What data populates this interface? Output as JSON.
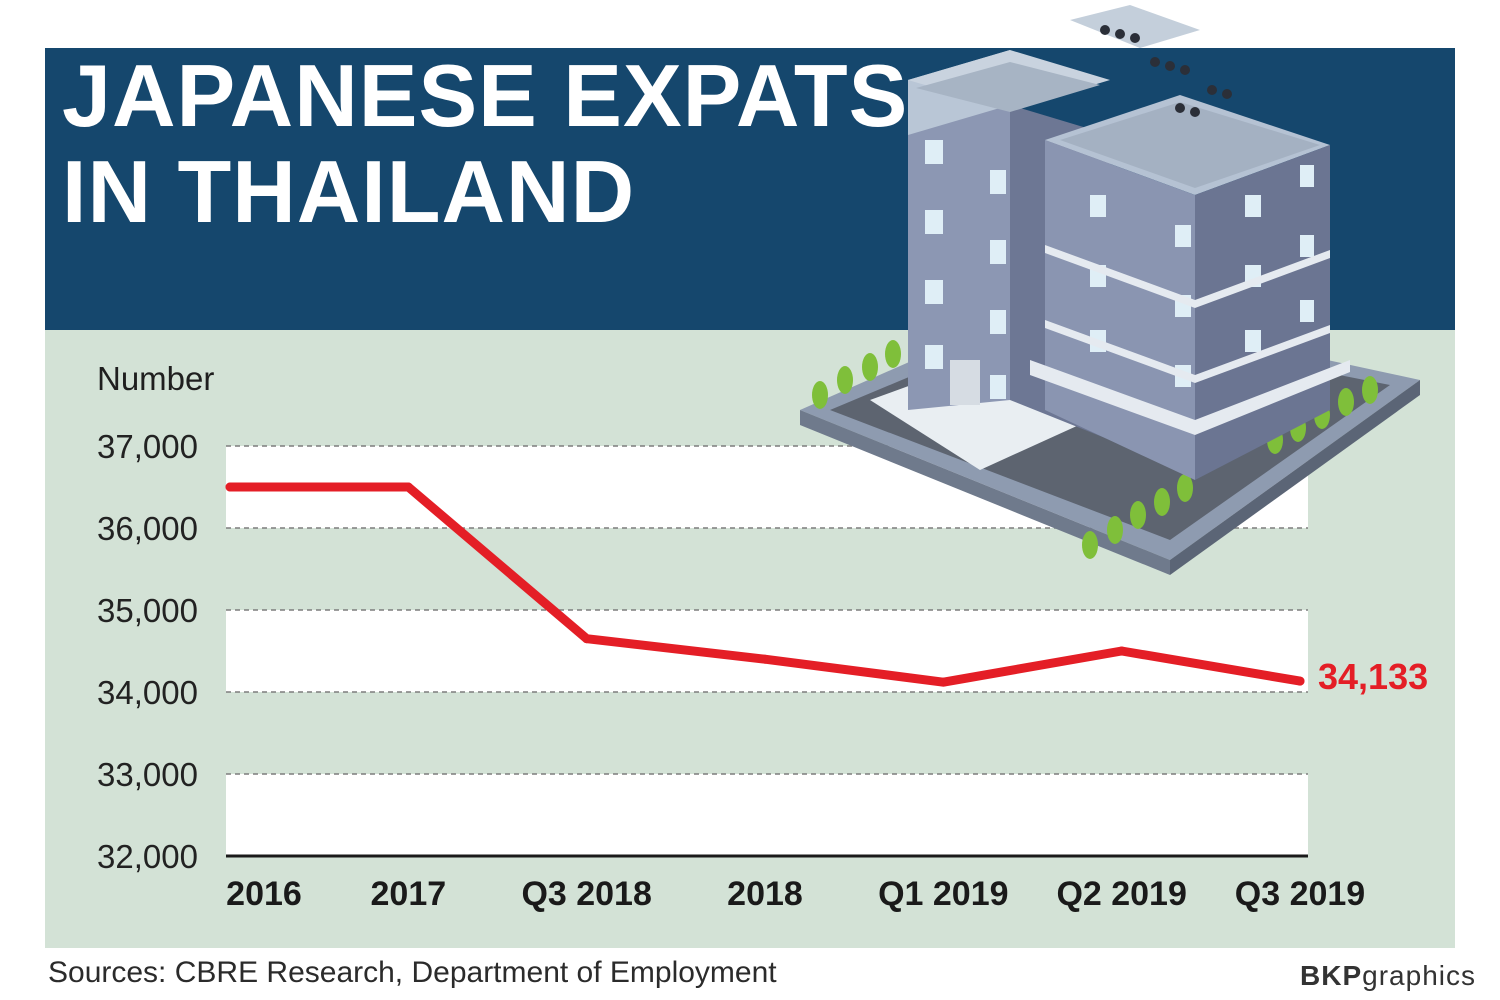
{
  "header": {
    "title_line1": "JAPANESE EXPATS",
    "title_line2": "IN THAILAND"
  },
  "footer": {
    "sources": "Sources: CBRE Research, Department of Employment",
    "credit_bold": "BKP",
    "credit_rest": "graphics"
  },
  "colors": {
    "header_bg": "#15476d",
    "plot_bg": "#d3e2d6",
    "line": "#e41e26",
    "band": "#ffffff"
  },
  "chart_data": {
    "type": "line",
    "ylabel": "Number",
    "categories": [
      "2016",
      "2017",
      "Q3 2018",
      "2018",
      "Q1 2019",
      "Q2 2019",
      "Q3 2019"
    ],
    "values": [
      36500,
      36500,
      34650,
      34400,
      34120,
      34500,
      34133
    ],
    "ylim": [
      32000,
      37000
    ],
    "yticks": [
      "32,000",
      "33,000",
      "34,000",
      "35,000",
      "36,000",
      "37,000"
    ],
    "end_label": "34,133",
    "grid": true,
    "legend": "none"
  }
}
